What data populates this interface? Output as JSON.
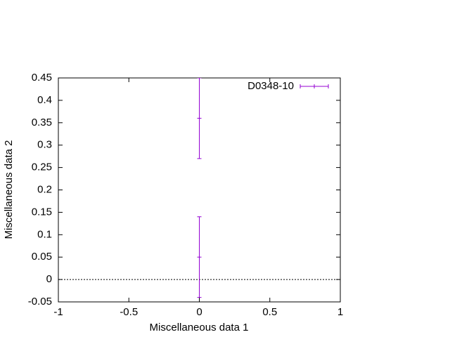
{
  "chart_data": {
    "type": "errorbar",
    "xlabel": "Miscellaneous data 1",
    "ylabel": "Miscellaneous data 2",
    "xlim": [
      -1,
      1
    ],
    "xticks": [
      -1,
      -0.5,
      0,
      0.5,
      1
    ],
    "ylim": [
      -0.05,
      0.45
    ],
    "yticks": [
      -0.05,
      0,
      0.05,
      0.1,
      0.15,
      0.2,
      0.25,
      0.3,
      0.35,
      0.4,
      0.45
    ],
    "zero_line": true,
    "legend": "top-right",
    "series": [
      {
        "name": "D0348-10",
        "color": "#9400d3",
        "x": [
          0,
          0
        ],
        "values": [
          0.05,
          0.36
        ],
        "errors": [
          0.09,
          0.09
        ]
      }
    ]
  }
}
